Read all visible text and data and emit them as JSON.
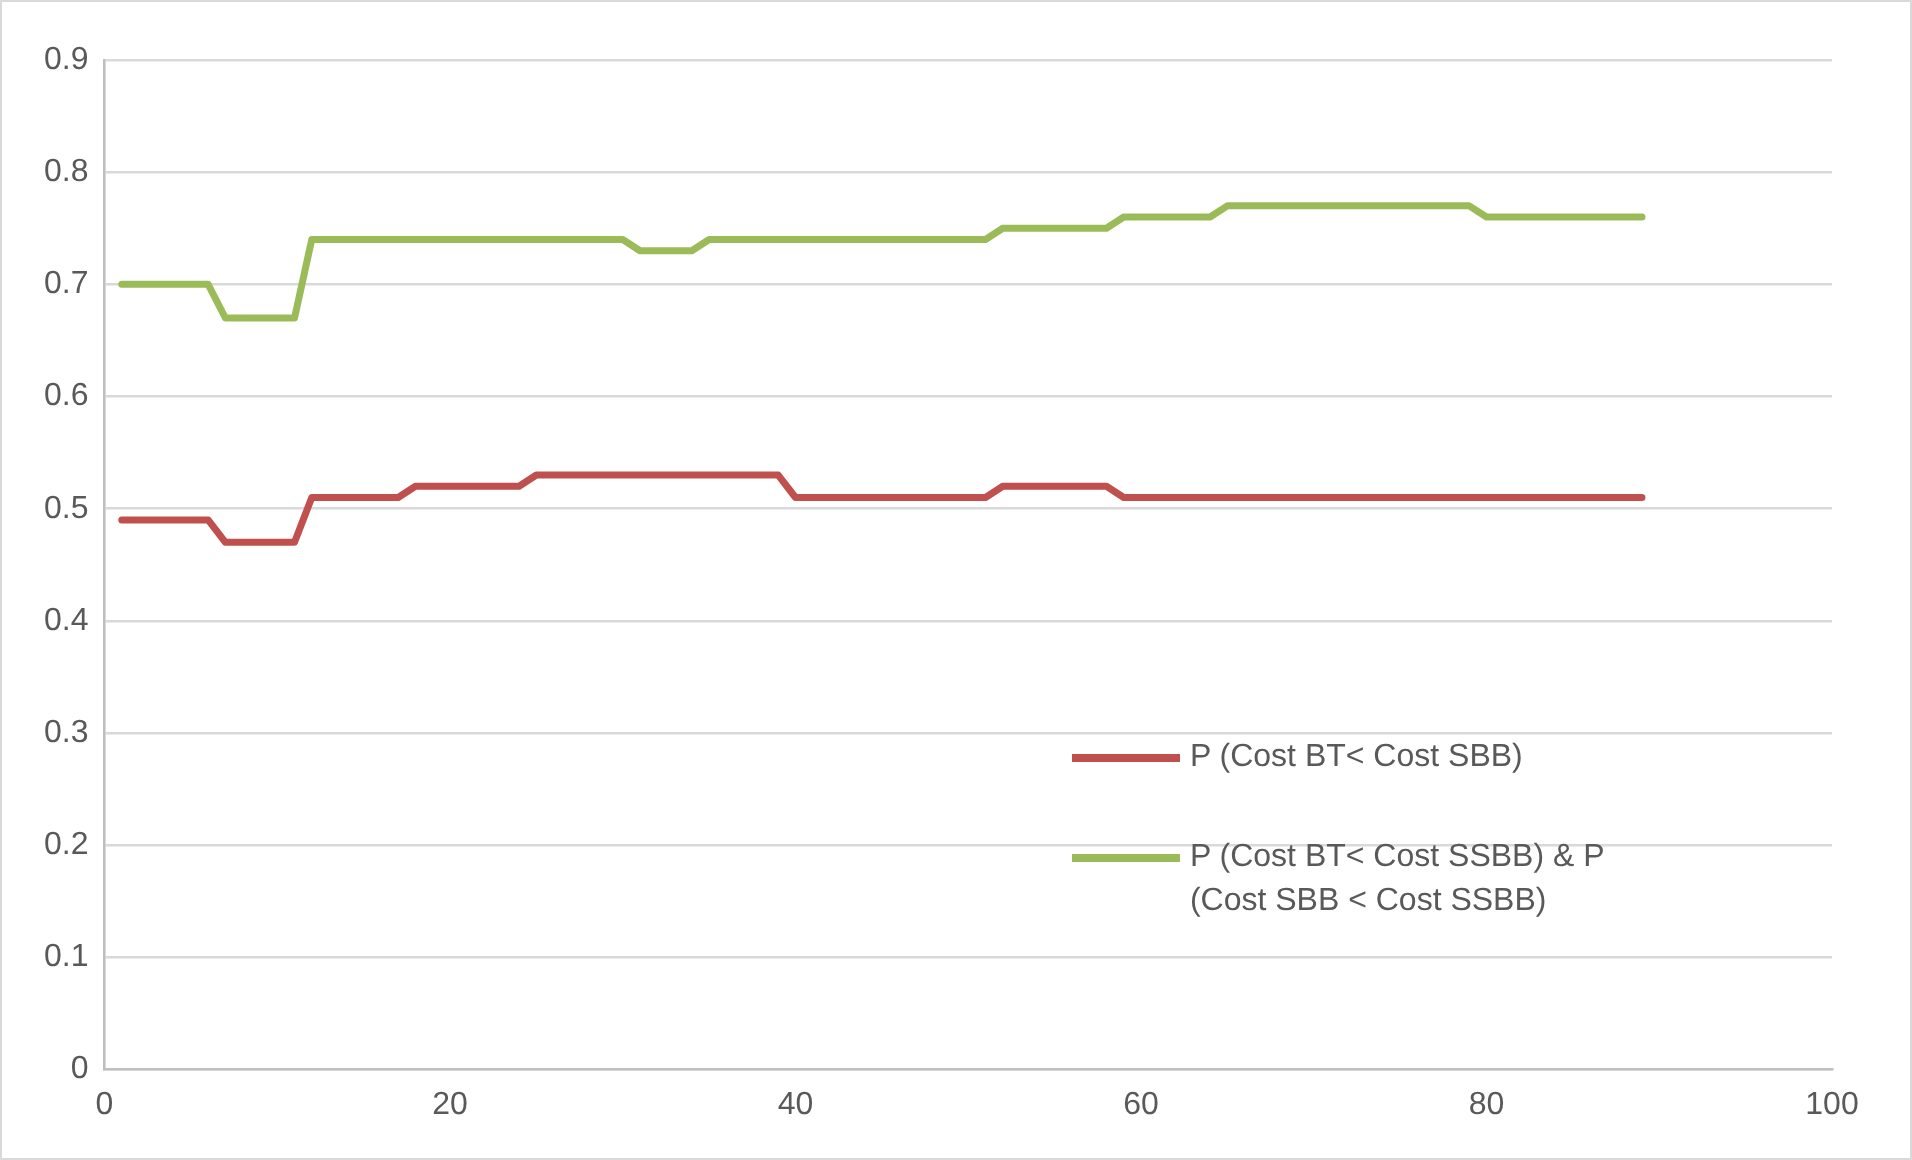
{
  "chart_data": {
    "type": "line",
    "xlim": [
      0,
      100
    ],
    "xticks": [
      0,
      20,
      40,
      60,
      80,
      100
    ],
    "ylim": [
      0,
      0.9
    ],
    "yticks": [
      0,
      0.1,
      0.2,
      0.3,
      0.4,
      0.5,
      0.6,
      0.7,
      0.8,
      0.9
    ],
    "grid": "y",
    "legend": "right",
    "marker": "none",
    "line_style": "solid",
    "series": [
      {
        "name": "P (Cost BT< Cost SBB)",
        "color": "#c0504d",
        "x": [
          1,
          6,
          7,
          11,
          12,
          17,
          18,
          24,
          25,
          39,
          40,
          51,
          52,
          58,
          59,
          89
        ],
        "values": [
          0.49,
          0.49,
          0.47,
          0.47,
          0.51,
          0.51,
          0.52,
          0.52,
          0.53,
          0.53,
          0.51,
          0.51,
          0.52,
          0.52,
          0.51,
          0.51
        ]
      },
      {
        "name": "P (Cost BT< Cost SSBB) & P (Cost SBB < Cost SSBB)",
        "color": "#9bbb59",
        "x": [
          1,
          6,
          7,
          11,
          12,
          30,
          31,
          34,
          35,
          51,
          52,
          58,
          59,
          64,
          65,
          79,
          80,
          89
        ],
        "values": [
          0.7,
          0.7,
          0.67,
          0.67,
          0.74,
          0.74,
          0.73,
          0.73,
          0.74,
          0.74,
          0.75,
          0.75,
          0.76,
          0.76,
          0.77,
          0.77,
          0.76,
          0.76
        ]
      }
    ]
  }
}
